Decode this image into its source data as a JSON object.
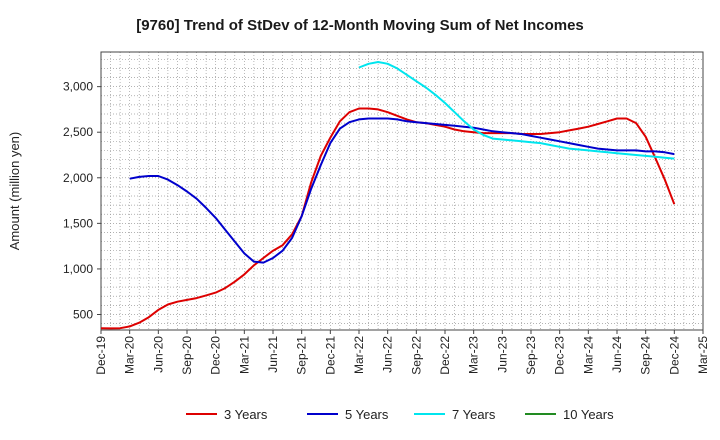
{
  "chart_data": {
    "type": "line",
    "title": "[9760]  Trend of StDev of 12-Month Moving Sum of Net Incomes",
    "ylabel": "Amount (million yen)",
    "xlabel": "",
    "ylim": [
      330,
      3380
    ],
    "yticks": [
      500,
      1000,
      1500,
      2000,
      2500,
      3000
    ],
    "ytick_labels": [
      "500",
      "1,000",
      "1,500",
      "2,000",
      "2,500",
      "3,000"
    ],
    "x_start": "Dec-19",
    "x_tick_labels": [
      "Dec-19",
      "Mar-20",
      "Jun-20",
      "Sep-20",
      "Dec-20",
      "Mar-21",
      "Jun-21",
      "Sep-21",
      "Dec-21",
      "Mar-22",
      "Jun-22",
      "Sep-22",
      "Dec-22",
      "Mar-23",
      "Jun-23",
      "Sep-23",
      "Dec-23",
      "Mar-24",
      "Jun-24",
      "Sep-24",
      "Dec-24",
      "Mar-25"
    ],
    "grid": true,
    "legend_position": "bottom",
    "series": [
      {
        "name": "3 Years",
        "color": "#dd0000",
        "x": [
          "Dec-19",
          "Jan-20",
          "Feb-20",
          "Mar-20",
          "Apr-20",
          "May-20",
          "Jun-20",
          "Jul-20",
          "Aug-20",
          "Sep-20",
          "Oct-20",
          "Nov-20",
          "Dec-20",
          "Jan-21",
          "Feb-21",
          "Mar-21",
          "Apr-21",
          "May-21",
          "Jun-21",
          "Jul-21",
          "Aug-21",
          "Sep-21",
          "Oct-21",
          "Nov-21",
          "Dec-21",
          "Jan-22",
          "Feb-22",
          "Mar-22",
          "Apr-22",
          "May-22",
          "Jun-22",
          "Jul-22",
          "Aug-22",
          "Sep-22",
          "Oct-22",
          "Nov-22",
          "Dec-22",
          "Jan-23",
          "Feb-23",
          "Mar-23",
          "Apr-23",
          "May-23",
          "Jun-23",
          "Jul-23",
          "Aug-23",
          "Sep-23",
          "Oct-23",
          "Nov-23",
          "Dec-23",
          "Jan-24",
          "Feb-24",
          "Mar-24",
          "Apr-24",
          "May-24",
          "Jun-24",
          "Jul-24",
          "Aug-24",
          "Sep-24",
          "Oct-24",
          "Nov-24",
          "Dec-24"
        ],
        "values": [
          350,
          348,
          350,
          370,
          410,
          470,
          550,
          610,
          640,
          660,
          680,
          710,
          740,
          790,
          860,
          940,
          1040,
          1120,
          1200,
          1260,
          1380,
          1580,
          1950,
          2240,
          2440,
          2620,
          2720,
          2760,
          2760,
          2750,
          2720,
          2680,
          2640,
          2610,
          2600,
          2580,
          2560,
          2530,
          2510,
          2500,
          2490,
          2490,
          2490,
          2490,
          2480,
          2480,
          2480,
          2490,
          2500,
          2520,
          2540,
          2560,
          2590,
          2620,
          2650,
          2650,
          2600,
          2450,
          2220,
          1980,
          1710
        ]
      },
      {
        "name": "5 Years",
        "color": "#0000cc",
        "x": [
          "Dec-19",
          "Jan-20",
          "Feb-20",
          "Mar-20",
          "Apr-20",
          "May-20",
          "Jun-20",
          "Jul-20",
          "Aug-20",
          "Sep-20",
          "Oct-20",
          "Nov-20",
          "Dec-20",
          "Jan-21",
          "Feb-21",
          "Mar-21",
          "Apr-21",
          "May-21",
          "Jun-21",
          "Jul-21",
          "Aug-21",
          "Sep-21",
          "Oct-21",
          "Nov-21",
          "Dec-21",
          "Jan-22",
          "Feb-22",
          "Mar-22",
          "Apr-22",
          "May-22",
          "Jun-22",
          "Jul-22",
          "Aug-22",
          "Sep-22",
          "Oct-22",
          "Nov-22",
          "Dec-22",
          "Jan-23",
          "Feb-23",
          "Mar-23",
          "Apr-23",
          "May-23",
          "Jun-23",
          "Jul-23",
          "Aug-23",
          "Sep-23",
          "Oct-23",
          "Nov-23",
          "Dec-23",
          "Jan-24",
          "Feb-24",
          "Mar-24",
          "Apr-24",
          "May-24",
          "Jun-24",
          "Jul-24",
          "Aug-24",
          "Sep-24",
          "Oct-24",
          "Nov-24",
          "Dec-24"
        ],
        "values": [
          null,
          null,
          null,
          null,
          null,
          null,
          null,
          null,
          null,
          null,
          null,
          null,
          null,
          null,
          null,
          null,
          null,
          null,
          null,
          null,
          null,
          null,
          null,
          null,
          null,
          null,
          null,
          null,
          null,
          null,
          null,
          null,
          null,
          null,
          null,
          null,
          null,
          null,
          null,
          null,
          null,
          null,
          null,
          null,
          null,
          null,
          null,
          null,
          null,
          null,
          null,
          null,
          null,
          null,
          null,
          null,
          null,
          null,
          null,
          null,
          null
        ]
      },
      {
        "name": "7 Years",
        "color": "#00e5ee",
        "x": [
          "Mar-22",
          "Apr-22",
          "May-22",
          "Jun-22",
          "Jul-22",
          "Aug-22",
          "Sep-22",
          "Oct-22",
          "Nov-22",
          "Dec-22",
          "Jan-23",
          "Feb-23",
          "Mar-23",
          "Apr-23",
          "May-23",
          "Jun-23",
          "Jul-23",
          "Aug-23",
          "Sep-23",
          "Oct-23",
          "Nov-23",
          "Dec-23",
          "Jan-24",
          "Feb-24",
          "Mar-24",
          "Apr-24",
          "May-24",
          "Jun-24",
          "Jul-24",
          "Aug-24",
          "Sep-24",
          "Oct-24",
          "Nov-24",
          "Dec-24"
        ],
        "values": [
          3210,
          3250,
          3270,
          3250,
          3200,
          3130,
          3060,
          2990,
          2910,
          2820,
          2720,
          2620,
          2530,
          2470,
          2430,
          2420,
          2410,
          2400,
          2390,
          2380,
          2360,
          2340,
          2320,
          2310,
          2300,
          2290,
          2280,
          2270,
          2260,
          2250,
          2240,
          2230,
          2220,
          2210
        ]
      },
      {
        "name": "10 Years",
        "color": "#228b22",
        "x": [],
        "values": []
      }
    ]
  }
}
